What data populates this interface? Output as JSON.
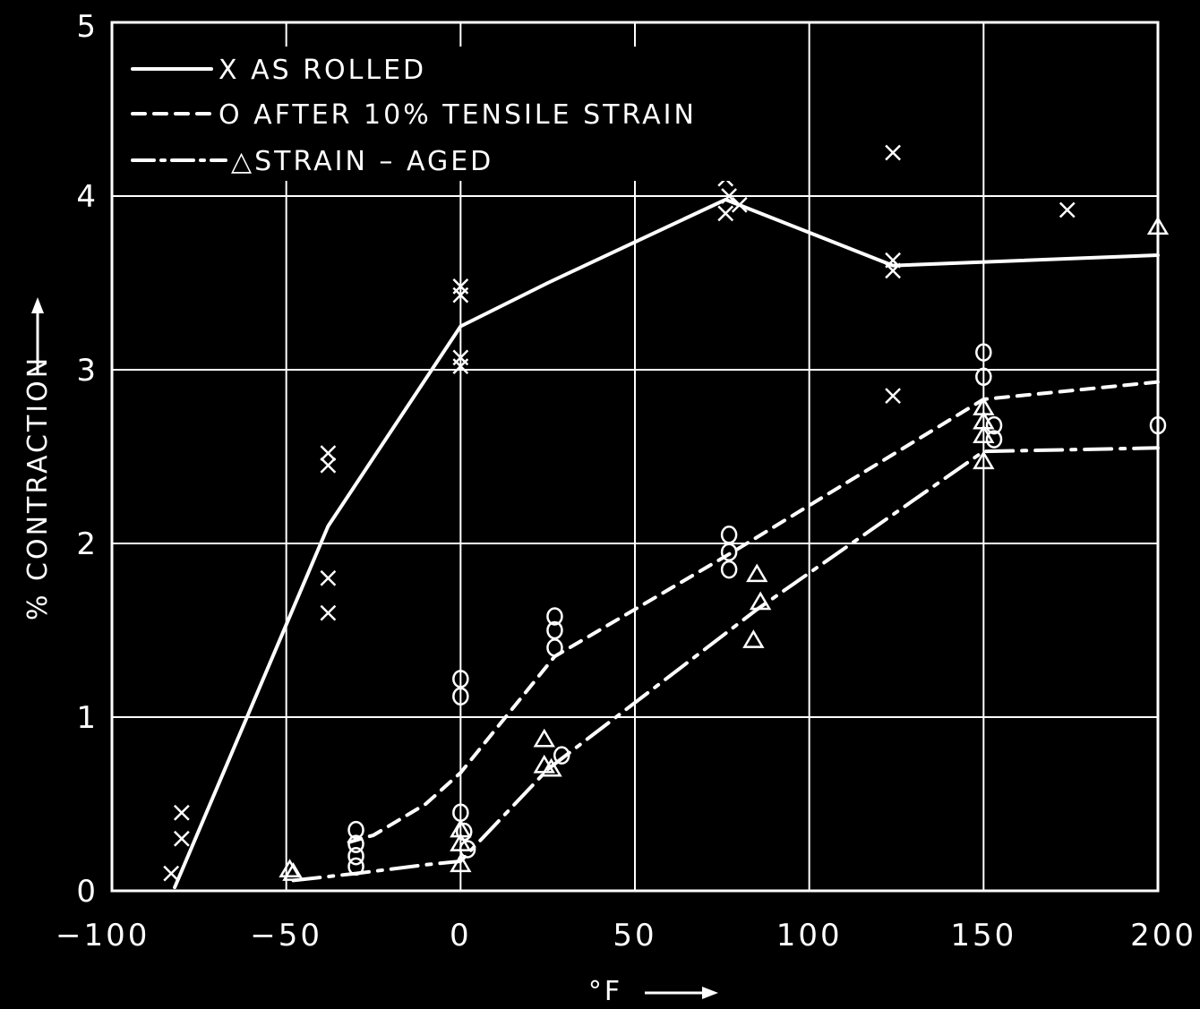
{
  "chart_data": {
    "type": "line",
    "title": "",
    "xlabel": "°F",
    "ylabel": "% CONTRACTION",
    "xlim": [
      -100,
      200
    ],
    "ylim": [
      0,
      5
    ],
    "x_ticks": [
      -100,
      -50,
      0,
      50,
      100,
      150,
      200
    ],
    "y_ticks": [
      0,
      1,
      2,
      3,
      4,
      5
    ],
    "x_tick_labels": [
      "−100",
      "−50",
      "0",
      "50",
      "100",
      "150",
      "200"
    ],
    "y_tick_labels": [
      "0",
      "1",
      "2",
      "3",
      "4",
      "5"
    ],
    "grid": true,
    "legend_position": "top-left",
    "series": [
      {
        "name": "AS ROLLED",
        "legend_label": "X AS ROLLED",
        "marker": "x",
        "line_style": "solid",
        "curve": [
          [
            -82,
            0.02
          ],
          [
            -38,
            2.1
          ],
          [
            0,
            3.25
          ],
          [
            25,
            3.5
          ],
          [
            76,
            3.98
          ],
          [
            124,
            3.6
          ],
          [
            200,
            3.66
          ]
        ],
        "points": [
          [
            -83,
            0.1
          ],
          [
            -80,
            0.45
          ],
          [
            -80,
            0.3
          ],
          [
            -38,
            2.52
          ],
          [
            -38,
            2.45
          ],
          [
            -38,
            1.8
          ],
          [
            -38,
            1.6
          ],
          [
            0,
            3.48
          ],
          [
            0,
            3.43
          ],
          [
            0,
            3.07
          ],
          [
            0,
            3.02
          ],
          [
            76,
            4.1
          ],
          [
            77,
            4.0
          ],
          [
            76,
            3.9
          ],
          [
            80,
            3.95
          ],
          [
            124,
            3.63
          ],
          [
            124,
            3.57
          ],
          [
            124,
            4.25
          ],
          [
            124,
            2.85
          ],
          [
            174,
            3.92
          ]
        ]
      },
      {
        "name": "AFTER 10% TENSILE STRAIN",
        "legend_label": "O AFTER 10% TENSILE STRAIN",
        "marker": "o",
        "line_style": "dashed",
        "curve": [
          [
            -32,
            0.28
          ],
          [
            -25,
            0.32
          ],
          [
            -10,
            0.5
          ],
          [
            0,
            0.68
          ],
          [
            27,
            1.35
          ],
          [
            78,
            1.95
          ],
          [
            150,
            2.83
          ],
          [
            200,
            2.93
          ]
        ],
        "points": [
          [
            -30,
            0.35
          ],
          [
            -30,
            0.27
          ],
          [
            -30,
            0.2
          ],
          [
            -30,
            0.14
          ],
          [
            0,
            1.22
          ],
          [
            0,
            1.12
          ],
          [
            0,
            0.45
          ],
          [
            1,
            0.34
          ],
          [
            2,
            0.24
          ],
          [
            27,
            1.58
          ],
          [
            27,
            1.5
          ],
          [
            27,
            1.4
          ],
          [
            77,
            2.05
          ],
          [
            77,
            1.95
          ],
          [
            77,
            1.85
          ],
          [
            150,
            3.1
          ],
          [
            150,
            2.96
          ],
          [
            153,
            2.68
          ],
          [
            153,
            2.6
          ],
          [
            29,
            0.78
          ],
          [
            200,
            2.68
          ]
        ]
      },
      {
        "name": "STRAIN - AGED",
        "legend_label": "△STRAIN – AGED",
        "marker": "triangle",
        "line_style": "dash-dot",
        "curve": [
          [
            -48,
            0.06
          ],
          [
            -30,
            0.1
          ],
          [
            -10,
            0.15
          ],
          [
            0,
            0.17
          ],
          [
            25,
            0.7
          ],
          [
            85,
            1.62
          ],
          [
            150,
            2.53
          ],
          [
            200,
            2.55
          ]
        ],
        "points": [
          [
            -49,
            0.12
          ],
          [
            -48,
            0.1
          ],
          [
            0,
            0.35
          ],
          [
            0,
            0.27
          ],
          [
            0,
            0.15
          ],
          [
            24,
            0.87
          ],
          [
            24,
            0.72
          ],
          [
            26,
            0.7
          ],
          [
            85,
            1.82
          ],
          [
            86,
            1.66
          ],
          [
            84,
            1.44
          ],
          [
            150,
            2.78
          ],
          [
            150,
            2.7
          ],
          [
            150,
            2.62
          ],
          [
            150,
            2.47
          ],
          [
            200,
            3.82
          ]
        ]
      }
    ]
  }
}
